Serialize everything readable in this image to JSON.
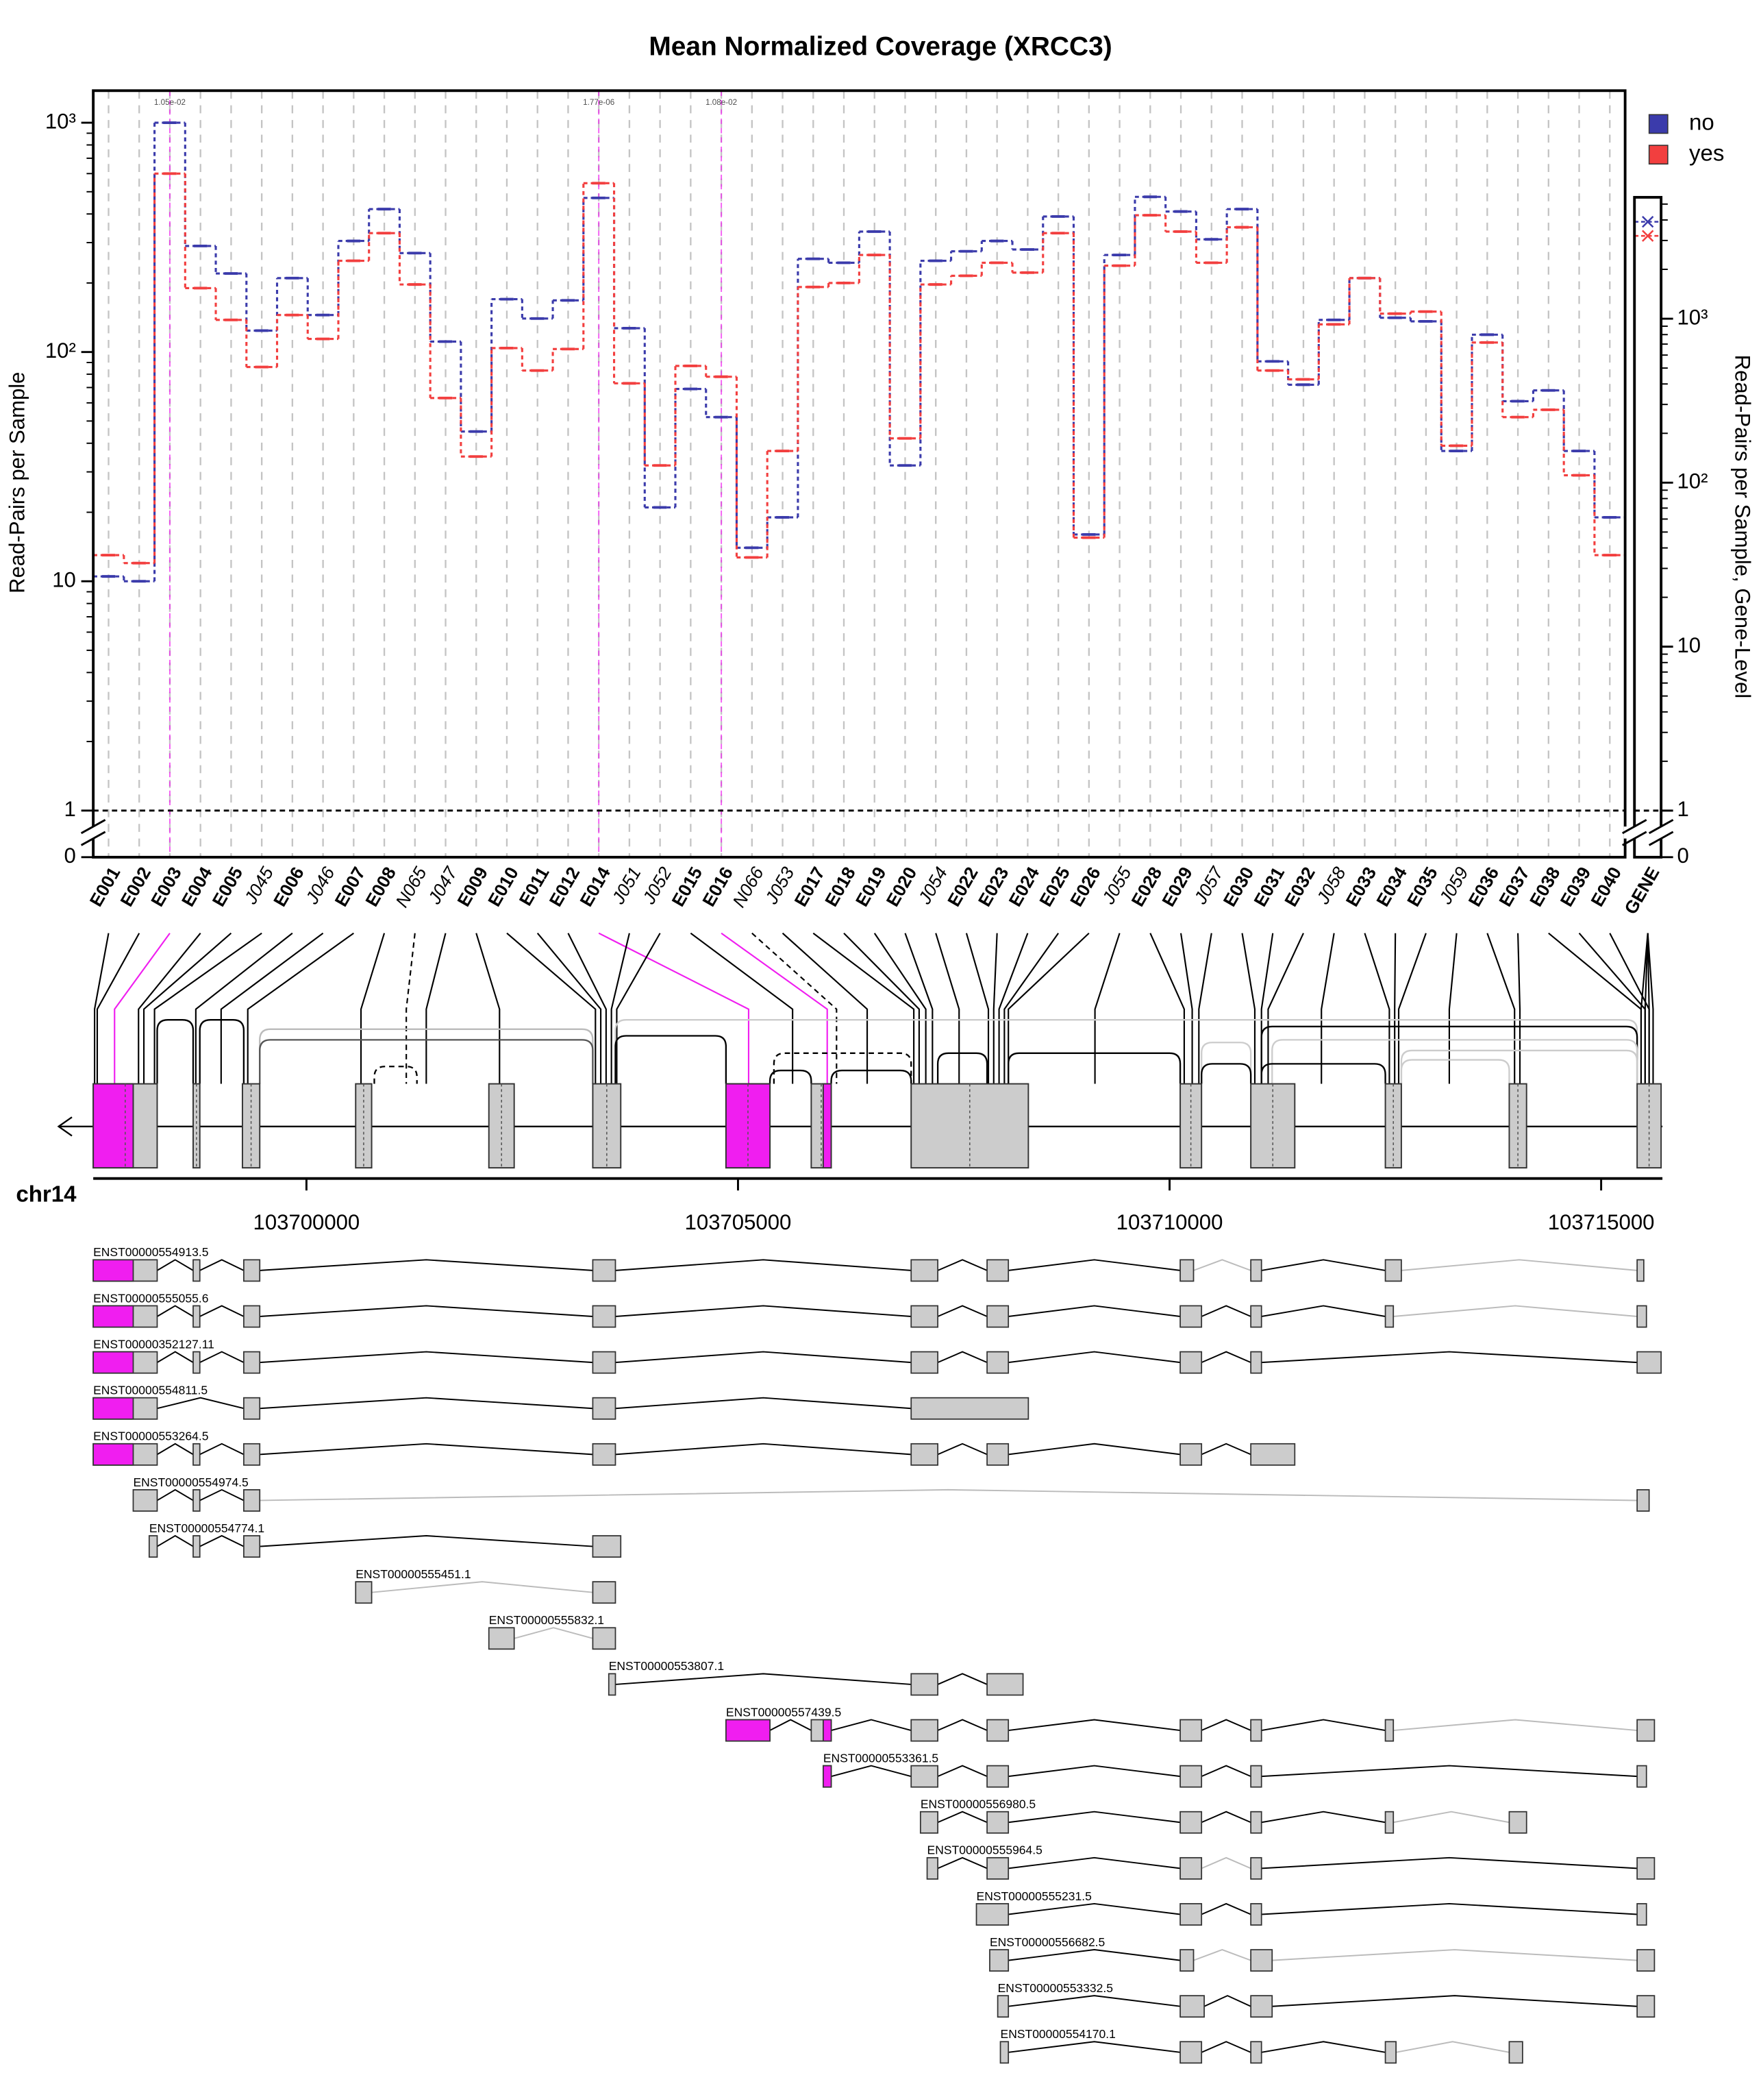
{
  "chart_data": {
    "type": "line",
    "title": "Mean Normalized Coverage (XRCC3)",
    "ylabel": "Read-Pairs per Sample",
    "y2label": "Read-Pairs per Sample, Gene-Level",
    "log_y": true,
    "grid": true,
    "legend": "top-right",
    "categories": [
      "E001",
      "E002",
      "E003",
      "E004",
      "E005",
      "J045",
      "E006",
      "J046",
      "E007",
      "E008",
      "N065",
      "J047",
      "E009",
      "E010",
      "E011",
      "E012",
      "E014",
      "J051",
      "J052",
      "E015",
      "E016",
      "N066",
      "J053",
      "E017",
      "E018",
      "E019",
      "E020",
      "J054",
      "E022",
      "E023",
      "E024",
      "E025",
      "E026",
      "J055",
      "E028",
      "E029",
      "J057",
      "E030",
      "E031",
      "E032",
      "J058",
      "E033",
      "E034",
      "E035",
      "J059",
      "E036",
      "E037",
      "E038",
      "E039",
      "E040"
    ],
    "gene_category": "GENE",
    "series": [
      {
        "name": "no",
        "color": "#3b3bab",
        "gene_value": 3900,
        "values": [
          10.5,
          10,
          1000,
          290,
          220,
          124,
          210,
          145,
          305,
          420,
          270,
          111,
          45,
          170,
          140,
          168,
          470,
          127,
          21,
          69,
          52,
          14,
          19,
          255,
          245,
          335,
          32,
          250,
          275,
          305,
          280,
          390,
          16,
          265,
          475,
          410,
          310,
          420,
          91,
          72,
          138,
          210,
          141,
          136,
          37,
          119,
          61,
          68,
          37,
          19
        ]
      },
      {
        "name": "yes",
        "color": "#f23f3f",
        "gene_value": 3200,
        "values": [
          13,
          12,
          600,
          190,
          138,
          86,
          145,
          114,
          250,
          330,
          197,
          63,
          35,
          104,
          83,
          103,
          545,
          73,
          32,
          87,
          78,
          12.7,
          37,
          192,
          200,
          265,
          42,
          197,
          215,
          245,
          222,
          330,
          15.5,
          238,
          395,
          335,
          245,
          350,
          83,
          76,
          132,
          210,
          147,
          150,
          39,
          110,
          52,
          56,
          29,
          13
        ]
      }
    ],
    "ylim": [
      0.626,
      1380
    ],
    "yticks": [
      0,
      1,
      10,
      {
        "value": 100,
        "label": "10²"
      },
      {
        "value": 1000,
        "label": "10³"
      }
    ],
    "yminorticks": [
      2,
      3,
      4,
      5,
      6,
      7,
      8,
      9,
      20,
      30,
      40,
      50,
      60,
      70,
      80,
      90,
      200,
      300,
      400,
      500,
      600,
      700,
      800,
      900
    ],
    "y2lim": [
      0.52,
      5500
    ],
    "y2ticks": [
      0,
      1,
      10,
      {
        "value": 100,
        "label": "10²"
      },
      {
        "value": 1000,
        "label": "10³"
      }
    ],
    "y2minorticks": [
      2,
      3,
      4,
      5,
      6,
      7,
      8,
      9,
      20,
      30,
      40,
      50,
      60,
      70,
      80,
      90,
      200,
      300,
      400,
      500,
      600,
      700,
      800,
      900,
      2000,
      3000,
      4000,
      5000
    ],
    "reference_line": 1,
    "annotations": [
      {
        "category": "E003",
        "text": "1.05e-02"
      },
      {
        "category": "E014",
        "text": "1.77e-06"
      },
      {
        "category": "E016",
        "text": "1.08e-02"
      }
    ]
  },
  "genome": {
    "chromosome": "chr14",
    "xlim": [
      103697530,
      103715710
    ],
    "xticks": [
      103700000,
      103705000,
      103710000,
      103715000
    ]
  },
  "transcripts": [
    "ENST00000554913.5",
    "ENST00000555055.6",
    "ENST00000352127.11",
    "ENST00000554811.5",
    "ENST00000553264.5",
    "ENST00000554974.5",
    "ENST00000554774.1",
    "ENST00000555451.1",
    "ENST00000555832.1",
    "ENST00000553807.1",
    "ENST00000557439.5",
    "ENST00000553361.5",
    "ENST00000556980.5",
    "ENST00000555964.5",
    "ENST00000555231.5",
    "ENST00000556682.5",
    "ENST00000553332.5",
    "ENST00000554170.1"
  ]
}
